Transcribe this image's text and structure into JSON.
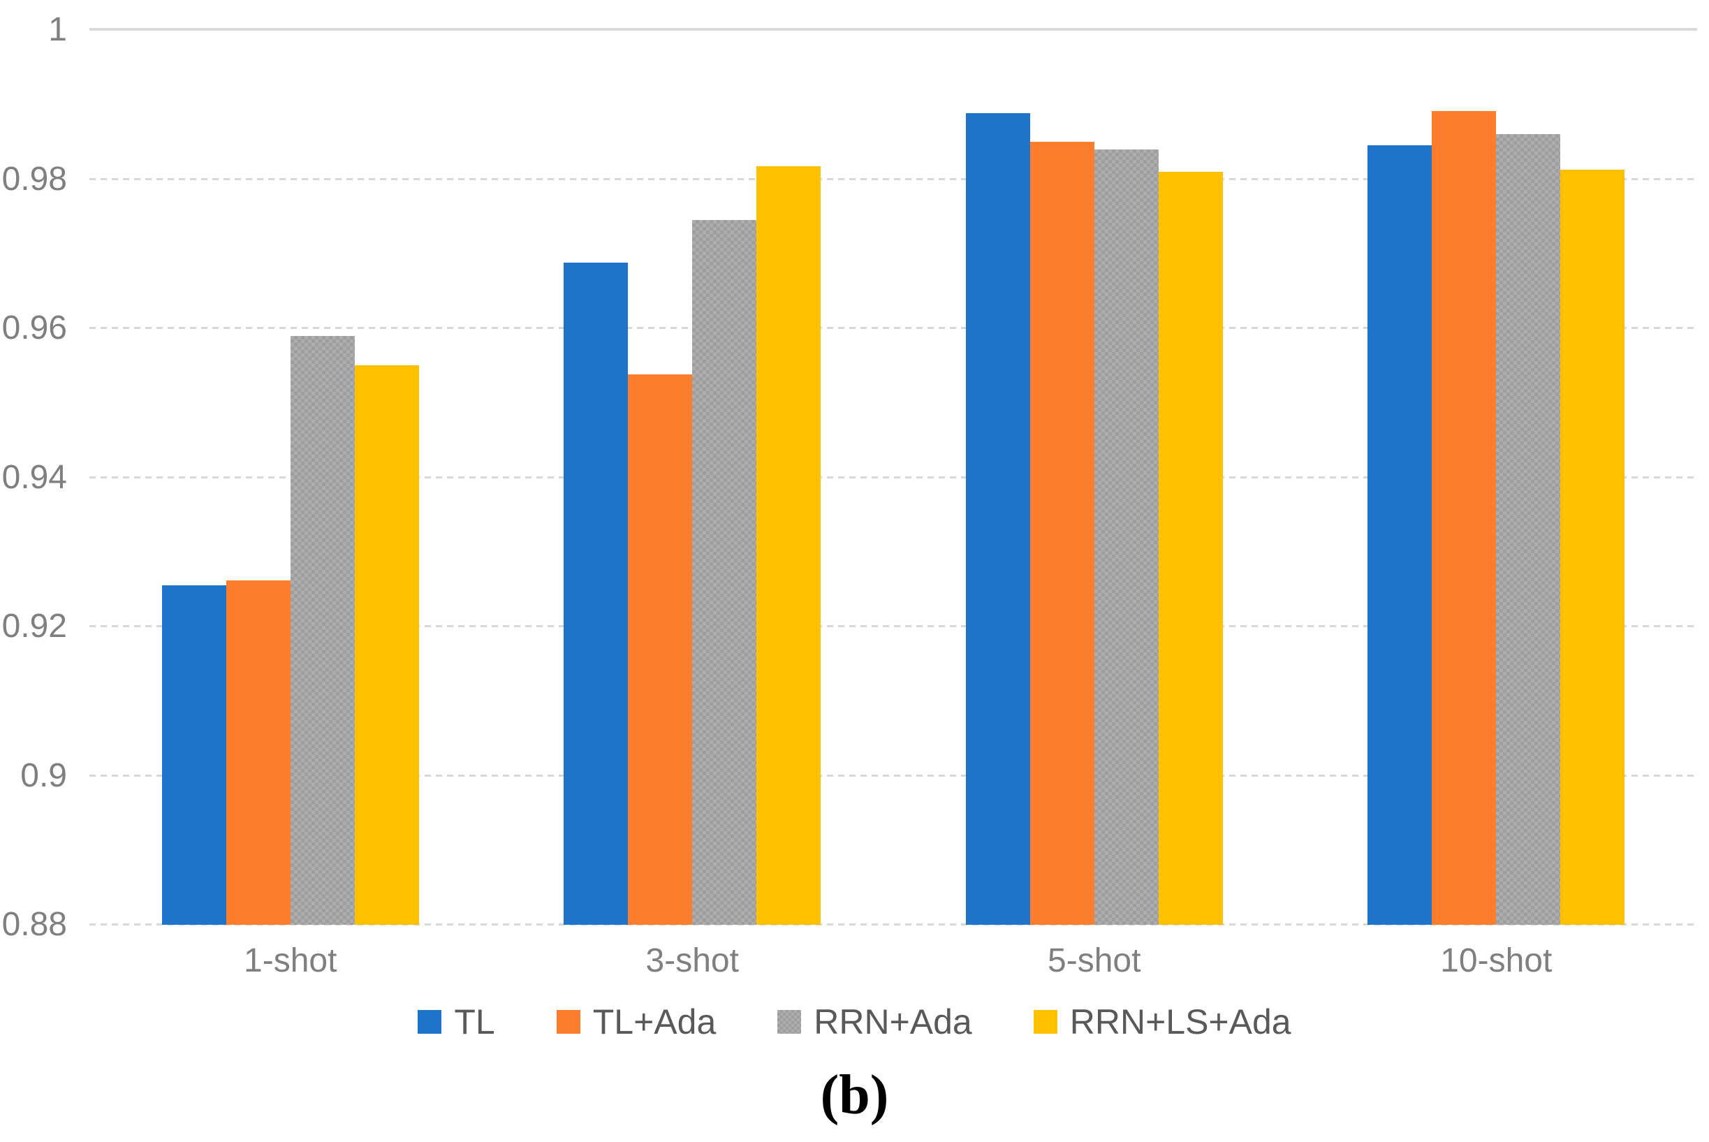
{
  "figure": {
    "caption": "(b)"
  },
  "chart_data": {
    "type": "bar",
    "title": "",
    "xlabel": "",
    "ylabel": "",
    "categories": [
      "1-shot",
      "3-shot",
      "5-shot",
      "10-shot"
    ],
    "series": [
      {
        "name": "TL",
        "color": "#1E74C8",
        "pattern": "solid",
        "values": [
          0.9255,
          0.9688,
          0.9889,
          0.9845
        ]
      },
      {
        "name": "TL+Ada",
        "color": "#FC7D2B",
        "pattern": "solid",
        "values": [
          0.9262,
          0.9538,
          0.985,
          0.9891
        ]
      },
      {
        "name": "RRN+Ada",
        "color": "#ADADAD",
        "pattern": "checker",
        "values": [
          0.959,
          0.9745,
          0.984,
          0.986
        ]
      },
      {
        "name": "RRN+LS+Ada",
        "color": "#FFC000",
        "pattern": "solid",
        "values": [
          0.955,
          0.9817,
          0.981,
          0.9813
        ]
      }
    ],
    "ylim": [
      0.88,
      1.0
    ],
    "yticks": [
      0.88,
      0.9,
      0.92,
      0.94,
      0.96,
      0.98,
      1
    ],
    "ytick_labels": [
      "0.88",
      "0.9",
      "0.92",
      "0.94",
      "0.96",
      "0.98",
      "1"
    ],
    "grid": "horizontal, dashed light gray, top line solid",
    "legend_position": "bottom"
  },
  "colors": {
    "background": "#FFFFFF",
    "gridline": "#D9D9D9",
    "tick_label": "#7F7F7F",
    "legend_label": "#595959",
    "caption": "#000000"
  }
}
